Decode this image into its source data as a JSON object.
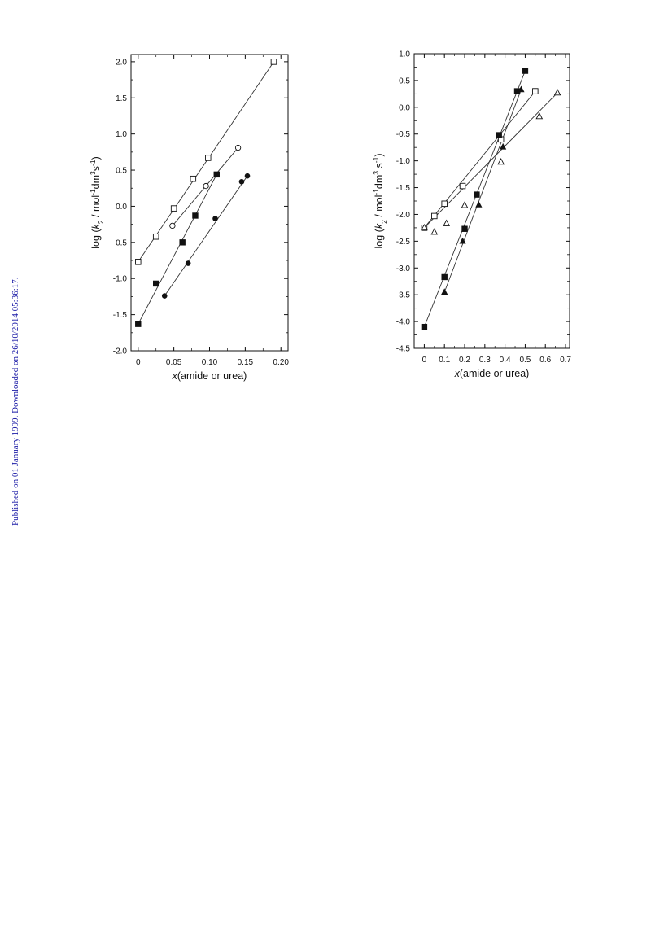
{
  "side_note": "Published on 01 January 1999. Downloaded on 26/10/2014 05:36:17.",
  "chart_data": [
    {
      "type": "scatter",
      "xlabel_parts": [
        {
          "t": "x",
          "i": true
        },
        {
          "t": "(amide or urea)"
        }
      ],
      "ylabel_parts": [
        {
          "t": "log ("
        },
        {
          "t": "k",
          "i": true
        },
        {
          "t": "2",
          "sub": true
        },
        {
          "t": " / mol"
        },
        {
          "t": "-1",
          "sup": true
        },
        {
          "t": "dm"
        },
        {
          "t": "3",
          "sup": true
        },
        {
          "t": "s"
        },
        {
          "t": "-1",
          "sup": true
        },
        {
          "t": ")"
        }
      ],
      "xlim": [
        -0.01,
        0.21
      ],
      "ylim": [
        -2.0,
        2.1
      ],
      "xticks": [
        0,
        0.05,
        0.1,
        0.15,
        0.2
      ],
      "xtick_labels": [
        "0",
        "0.05",
        "0.10",
        "0.15",
        "0.20"
      ],
      "yticks": [
        -2.0,
        -1.5,
        -1.0,
        -0.5,
        0.0,
        0.5,
        1.0,
        1.5,
        2.0
      ],
      "ytick_labels": [
        "-2.0",
        "-1.5",
        "-1.0",
        "-0.5",
        "0.0",
        "0.5",
        "1.0",
        "1.5",
        "2.0"
      ],
      "series": [
        {
          "marker": "open-square",
          "x": [
            0,
            0.025,
            0.05,
            0.077,
            0.098,
            0.19
          ],
          "y": [
            -0.77,
            -0.42,
            -0.03,
            0.38,
            0.67,
            2.0
          ]
        },
        {
          "marker": "open-circle",
          "x": [
            0.048,
            0.095,
            0.14
          ],
          "y": [
            -0.27,
            0.28,
            0.81
          ]
        },
        {
          "marker": "filled-square",
          "x": [
            0,
            0.025,
            0.062,
            0.08,
            0.11
          ],
          "y": [
            -1.63,
            -1.07,
            -0.5,
            -0.13,
            0.44
          ]
        },
        {
          "marker": "filled-circle",
          "x": [
            0.037,
            0.07,
            0.108,
            0.145,
            0.153
          ],
          "y": [
            -1.24,
            -0.79,
            -0.17,
            0.34,
            0.42
          ]
        }
      ]
    },
    {
      "type": "scatter",
      "xlabel_parts": [
        {
          "t": "x",
          "i": true
        },
        {
          "t": "(amide or urea)"
        }
      ],
      "ylabel_parts": [
        {
          "t": "log ("
        },
        {
          "t": "k",
          "i": true
        },
        {
          "t": "2",
          "sub": true
        },
        {
          "t": " / mol"
        },
        {
          "t": "-1",
          "sup": true
        },
        {
          "t": "dm"
        },
        {
          "t": "3",
          "sup": true
        },
        {
          "t": " s"
        },
        {
          "t": "-1",
          "sup": true
        },
        {
          "t": ")"
        }
      ],
      "xlim": [
        -0.05,
        0.72
      ],
      "ylim": [
        -4.5,
        1.0
      ],
      "xticks": [
        0,
        0.1,
        0.2,
        0.3,
        0.4,
        0.5,
        0.6,
        0.7
      ],
      "xtick_labels": [
        "0",
        "0.1",
        "0.2",
        "0.3",
        "0.4",
        "0.5",
        "0.6",
        "0.7"
      ],
      "yticks": [
        -4.5,
        -4.0,
        -3.5,
        -3.0,
        -2.5,
        -2.0,
        -1.5,
        -1.0,
        -0.5,
        0.0,
        0.5,
        1.0
      ],
      "ytick_labels": [
        "-4.5",
        "-4.0",
        "-3.5",
        "-3.0",
        "-2.5",
        "-2.0",
        "-1.5",
        "-1.0",
        "-0.5",
        "0.0",
        "0.5",
        "1.0"
      ],
      "series": [
        {
          "marker": "open-square",
          "x": [
            0,
            0.05,
            0.1,
            0.19,
            0.38,
            0.55
          ],
          "y": [
            -2.25,
            -2.03,
            -1.8,
            -1.47,
            -0.6,
            0.3
          ]
        },
        {
          "marker": "open-triangle",
          "x": [
            0,
            0.05,
            0.11,
            0.2,
            0.38,
            0.57,
            0.66
          ],
          "y": [
            -2.25,
            -2.33,
            -2.17,
            -1.83,
            -1.02,
            -0.17,
            0.27
          ]
        },
        {
          "marker": "filled-square",
          "x": [
            0,
            0.1,
            0.2,
            0.26,
            0.37,
            0.46,
            0.5
          ],
          "y": [
            -4.1,
            -3.17,
            -2.27,
            -1.63,
            -0.52,
            0.3,
            0.68
          ]
        },
        {
          "marker": "filled-triangle",
          "x": [
            0.1,
            0.19,
            0.27,
            0.39,
            0.48
          ],
          "y": [
            -3.45,
            -2.5,
            -1.82,
            -0.74,
            0.33
          ]
        }
      ]
    }
  ]
}
